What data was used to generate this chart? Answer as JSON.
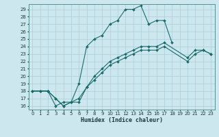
{
  "xlabel": "Humidex (Indice chaleur)",
  "ylabel": "",
  "background_color": "#cce8ee",
  "grid_color": "#aacdd6",
  "line_color": "#1a6b6b",
  "xlim": [
    -0.5,
    23.5
  ],
  "ylim": [
    15.5,
    29.7
  ],
  "xticks": [
    0,
    1,
    2,
    3,
    4,
    5,
    6,
    7,
    8,
    9,
    10,
    11,
    12,
    13,
    14,
    15,
    16,
    17,
    18,
    19,
    20,
    21,
    22,
    23
  ],
  "yticks": [
    16,
    17,
    18,
    19,
    20,
    21,
    22,
    23,
    24,
    25,
    26,
    27,
    28,
    29
  ],
  "line1_x": [
    0,
    1,
    2,
    3,
    4,
    5,
    6,
    7,
    8,
    9,
    10,
    11,
    12,
    13,
    14,
    15,
    16,
    17,
    18
  ],
  "line1_y": [
    18,
    18,
    18,
    16,
    16.5,
    16.5,
    19,
    24,
    25,
    25.5,
    27,
    27.5,
    29,
    29,
    29.5,
    27,
    27.5,
    27.5,
    24.5
  ],
  "line2_x": [
    0,
    1,
    2,
    3,
    4,
    5,
    6,
    7,
    8,
    9,
    10,
    11,
    12,
    13,
    14,
    15,
    16,
    17,
    20,
    21,
    22,
    23
  ],
  "line2_y": [
    18,
    18,
    18,
    17,
    16,
    16.5,
    16.5,
    18.5,
    20,
    21,
    22,
    22.5,
    23,
    23.5,
    24,
    24,
    24,
    24.5,
    22.5,
    23.5,
    23.5,
    23
  ],
  "line3_x": [
    0,
    1,
    2,
    3,
    4,
    5,
    6,
    7,
    8,
    9,
    10,
    11,
    12,
    13,
    14,
    15,
    16,
    17,
    20,
    21,
    22,
    23
  ],
  "line3_y": [
    18,
    18,
    18,
    17,
    16,
    16.5,
    17,
    18.5,
    19.5,
    20.5,
    21.5,
    22,
    22.5,
    23,
    23.5,
    23.5,
    23.5,
    24,
    22,
    23,
    23.5,
    23
  ]
}
